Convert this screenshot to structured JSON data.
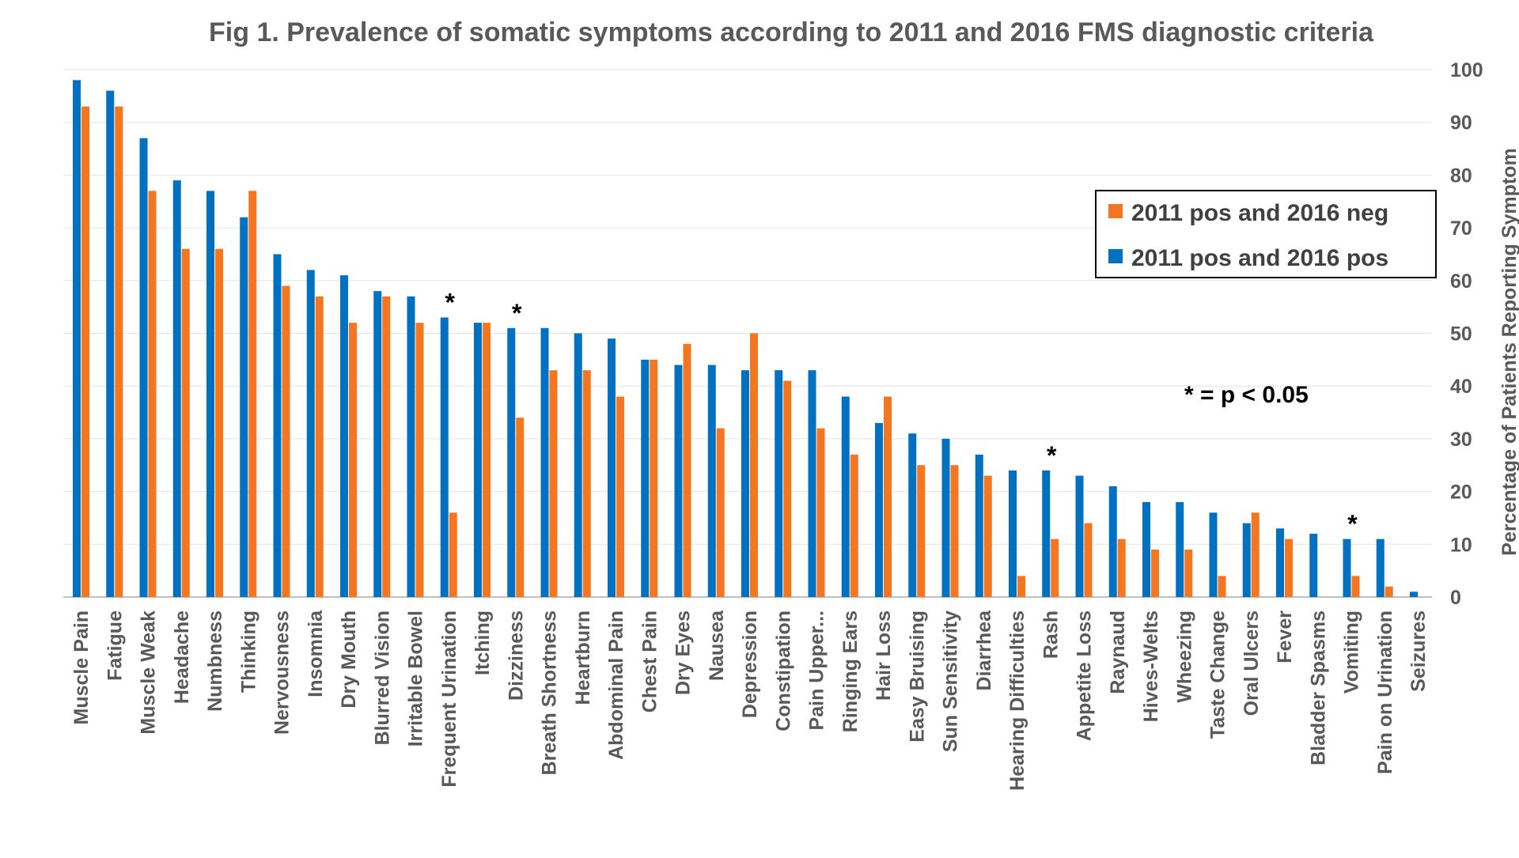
{
  "chart_data": {
    "type": "bar",
    "title": "Fig 1. Prevalence of somatic symptoms according to 2011 and 2016 FMS diagnostic criteria",
    "xlabel": "",
    "ylabel": "Percentage of Patients Reporting Symptom",
    "ylim": [
      0,
      100
    ],
    "yticks": [
      "0",
      "10",
      "20",
      "30",
      "40",
      "50",
      "60",
      "70",
      "80",
      "90",
      "100"
    ],
    "grid": true,
    "legend_position": "top-right",
    "categories": [
      "Muscle Pain",
      "Fatigue",
      "Muscle Weak",
      "Headache",
      "Numbness",
      "Thinking",
      "Nervousness",
      "Insomnia",
      "Dry Mouth",
      "Blurred Vision",
      "Irritable Bowel",
      "Frequent Urination",
      "Itching",
      "Dizziness",
      "Breath Shortness",
      "Heartburn",
      "Abdominal Pain",
      "Chest Pain",
      "Dry Eyes",
      "Nausea",
      "Depression",
      "Constipation",
      "Pain Upper...",
      "Ringing Ears",
      "Hair Loss",
      "Easy Bruising",
      "Sun Sensitivity",
      "Diarrhea",
      "Hearing Difficulties",
      "Rash",
      "Appetite Loss",
      "Raynaud",
      "Hives-Welts",
      "Wheezing",
      "Taste Change",
      "Oral Ulcers",
      "Fever",
      "Bladder Spasms",
      "Vomiting",
      "Pain on Urination",
      "Seizures"
    ],
    "series": [
      {
        "name": "2011 pos and 2016 pos",
        "color": "#0070C0",
        "values": [
          98,
          96,
          87,
          79,
          77,
          72,
          65,
          62,
          61,
          58,
          57,
          53,
          52,
          51,
          51,
          50,
          49,
          45,
          44,
          44,
          43,
          43,
          43,
          38,
          33,
          31,
          30,
          27,
          24,
          24,
          23,
          21,
          18,
          18,
          16,
          14,
          13,
          12,
          11,
          11,
          1
        ]
      },
      {
        "name": "2011 pos and 2016 neg",
        "color": "#F47621",
        "values": [
          93,
          93,
          77,
          66,
          66,
          77,
          59,
          57,
          52,
          57,
          52,
          16,
          52,
          34,
          43,
          43,
          38,
          45,
          48,
          32,
          50,
          41,
          32,
          27,
          38,
          25,
          25,
          23,
          4,
          11,
          14,
          11,
          9,
          9,
          4,
          16,
          11,
          0,
          4,
          2,
          0
        ]
      }
    ],
    "legend": [
      "2011 pos and 2016 neg",
      "2011 pos and 2016 pos"
    ],
    "significant_categories": [
      "Frequent Urination",
      "Dizziness",
      "Rash",
      "Vomiting"
    ],
    "annotation_marker": "*",
    "annotation": "* = p < 0.05"
  }
}
